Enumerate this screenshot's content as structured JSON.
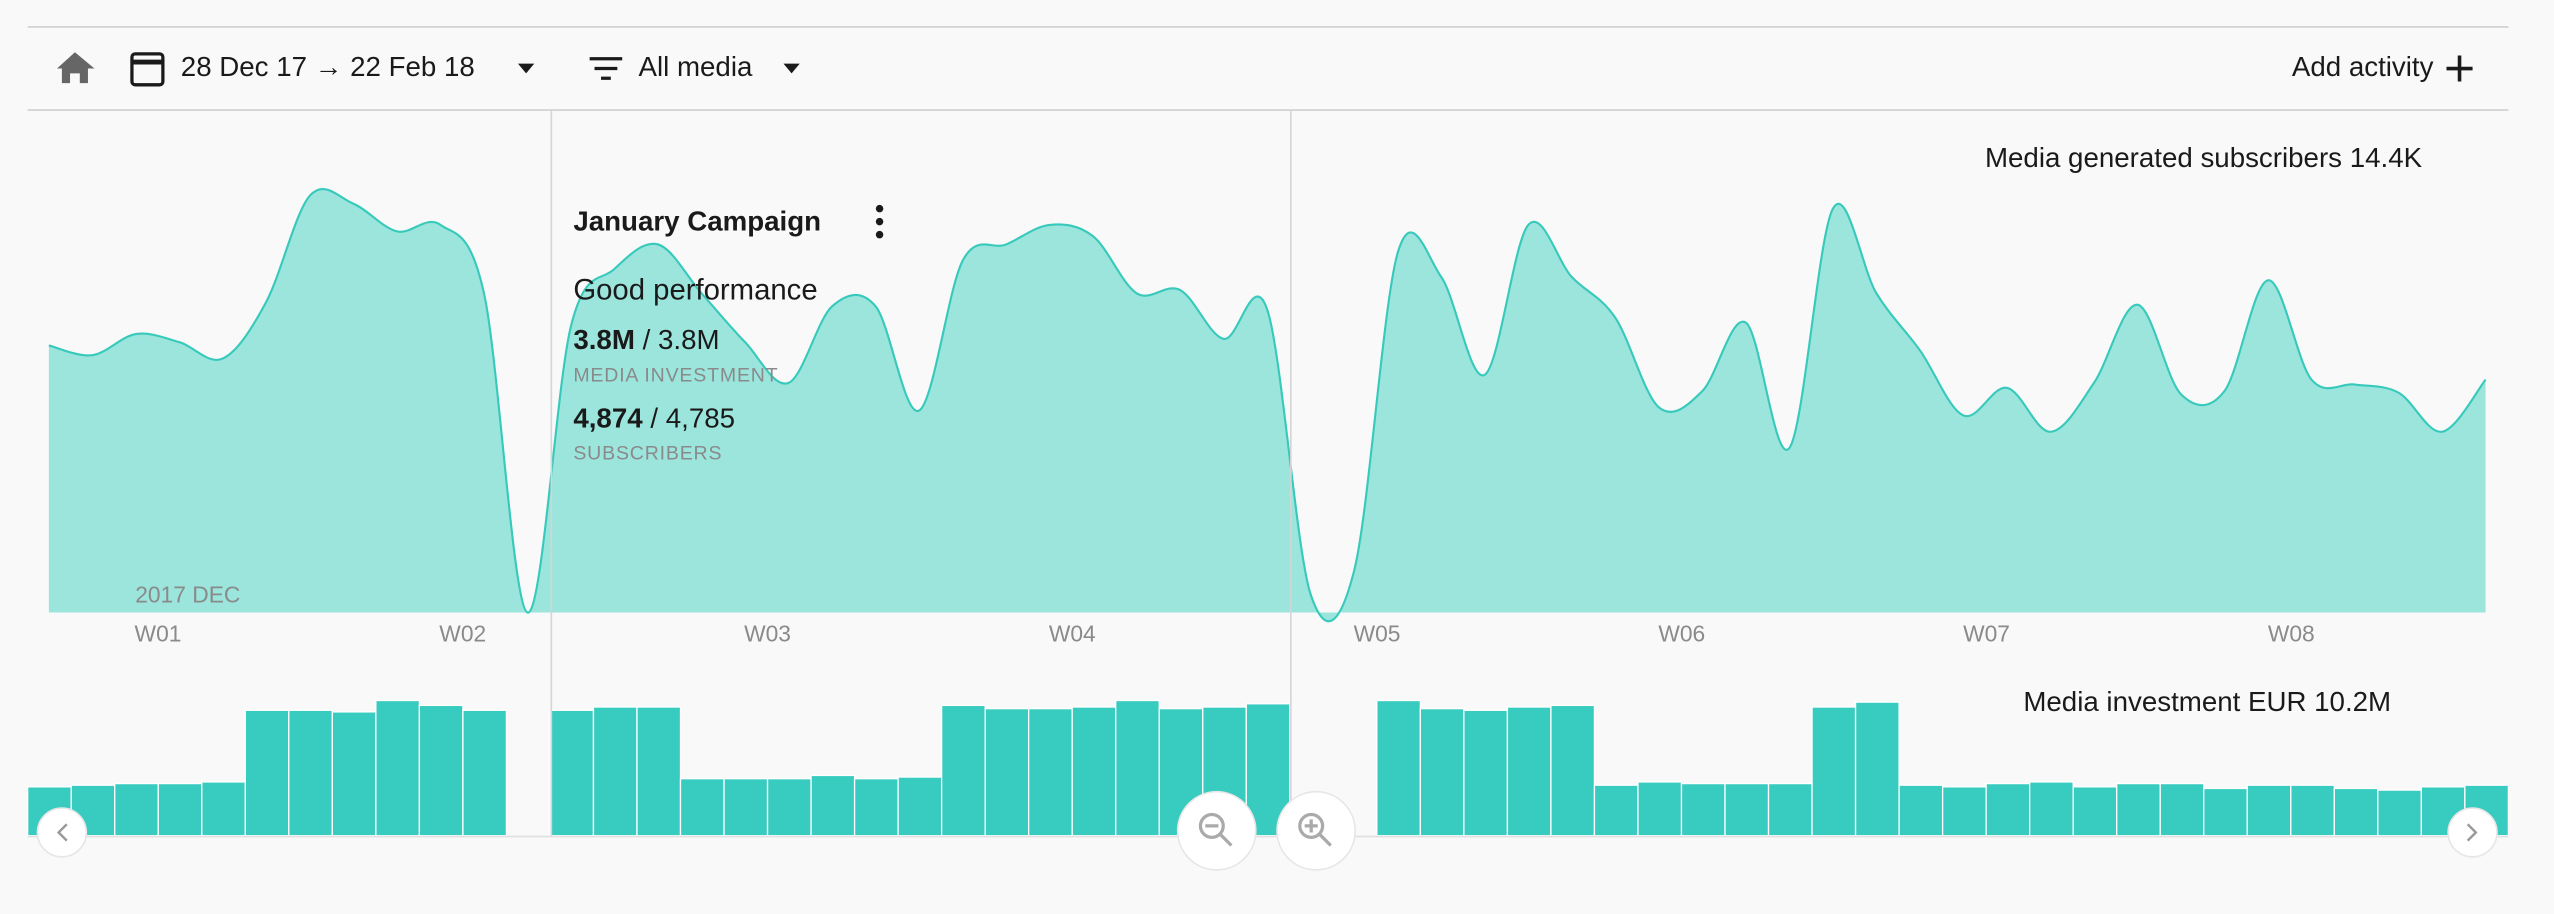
{
  "toolbar": {
    "date_range": "28 Dec 17 → 22 Feb 18",
    "filter": "All media",
    "action": "Add activity"
  },
  "tooltip": {
    "title": "January Campaign",
    "status": "Good performance",
    "separator": "/",
    "investment_actual": "3.8M",
    "investment_target": "3.8M",
    "investment_label": "MEDIA INVESTMENT",
    "subscribers_actual": "4,874",
    "subscribers_target": "4,785",
    "subscribers_label": "SUBSCRIBERS"
  },
  "chart_data": [
    {
      "type": "area",
      "title": "Media generated subscribers 14.4K",
      "month_label": "2017 DEC",
      "x_labels": [
        "W01",
        "W02",
        "W03",
        "W04",
        "W05",
        "W06",
        "W07",
        "W08"
      ],
      "color": "#37c9bb",
      "fill": "#9be5dc",
      "ylim": [
        0,
        260
      ],
      "values": [
        164,
        158,
        171,
        166,
        156,
        191,
        256,
        251,
        234,
        238,
        196,
        0,
        176,
        211,
        226,
        196,
        166,
        141,
        188,
        188,
        124,
        216,
        226,
        238,
        231,
        196,
        198,
        168,
        186,
        11,
        26,
        221,
        206,
        146,
        238,
        206,
        181,
        126,
        136,
        178,
        101,
        248,
        196,
        161,
        121,
        138,
        111,
        141,
        189,
        134,
        136,
        204,
        143,
        140,
        135,
        111,
        143
      ]
    },
    {
      "type": "bar",
      "title": "Media investment EUR 10.2M",
      "color": "#38cbbf",
      "ylim": [
        0,
        100
      ],
      "values": [
        30,
        31,
        32,
        32,
        33,
        77,
        77,
        76,
        83,
        80,
        77,
        0,
        77,
        79,
        79,
        35,
        35,
        35,
        37,
        35,
        36,
        80,
        78,
        78,
        79,
        83,
        78,
        79,
        81,
        0,
        0,
        83,
        78,
        77,
        79,
        80,
        31,
        33,
        32,
        32,
        32,
        79,
        82,
        31,
        30,
        32,
        33,
        30,
        32,
        32,
        29,
        31,
        31,
        29,
        28,
        30,
        31
      ]
    }
  ]
}
